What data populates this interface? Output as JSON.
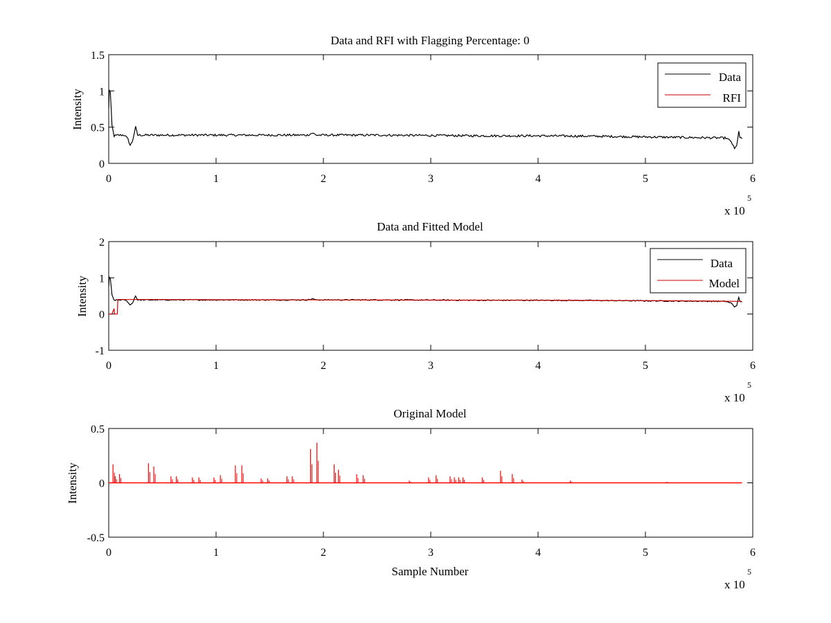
{
  "chart_data": [
    {
      "type": "line",
      "title": "Data and RFI with Flagging Percentage: 0",
      "xlabel": "",
      "ylabel": "Intensity",
      "xlim": [
        0,
        6
      ],
      "ylim": [
        0,
        1.5
      ],
      "x_multiplier": {
        "base": "x 10",
        "exponent": "5"
      },
      "xticks": [
        "0",
        "1",
        "2",
        "3",
        "4",
        "5",
        "6"
      ],
      "yticks": [
        "0",
        "0.5",
        "1",
        "1.5"
      ],
      "xtick_values": [
        0,
        1,
        2,
        3,
        4,
        5,
        6
      ],
      "ytick_values": [
        0,
        0.5,
        1,
        1.5
      ],
      "grid": false,
      "legend_position": "top-right",
      "series": [
        {
          "name": "Data",
          "color": "#000000",
          "points": [
            [
              0,
              0.75
            ],
            [
              0.005,
              1.02
            ],
            [
              0.015,
              0.98
            ],
            [
              0.03,
              0.52
            ],
            [
              0.05,
              0.38
            ],
            [
              0.1,
              0.39
            ],
            [
              0.15,
              0.39
            ],
            [
              0.18,
              0.33
            ],
            [
              0.2,
              0.25
            ],
            [
              0.22,
              0.3
            ],
            [
              0.25,
              0.5
            ],
            [
              0.27,
              0.39
            ],
            [
              0.5,
              0.39
            ],
            [
              1,
              0.39
            ],
            [
              1.5,
              0.39
            ],
            [
              1.85,
              0.39
            ],
            [
              1.9,
              0.42
            ],
            [
              1.93,
              0.39
            ],
            [
              2.5,
              0.39
            ],
            [
              3,
              0.385
            ],
            [
              3.5,
              0.38
            ],
            [
              4,
              0.38
            ],
            [
              4.5,
              0.375
            ],
            [
              5,
              0.365
            ],
            [
              5.5,
              0.355
            ],
            [
              5.75,
              0.35
            ],
            [
              5.8,
              0.3
            ],
            [
              5.83,
              0.2
            ],
            [
              5.85,
              0.24
            ],
            [
              5.87,
              0.45
            ],
            [
              5.88,
              0.35
            ],
            [
              5.9,
              0.34
            ]
          ],
          "noise": 0.015
        },
        {
          "name": "RFI",
          "color": "#cc0000",
          "points": []
        }
      ]
    },
    {
      "type": "line",
      "title": "Data and Fitted Model",
      "xlabel": "",
      "ylabel": "Intensity",
      "xlim": [
        0,
        6
      ],
      "ylim": [
        -1,
        2
      ],
      "x_multiplier": {
        "base": "x 10",
        "exponent": "5"
      },
      "xticks": [
        "0",
        "1",
        "2",
        "3",
        "4",
        "5",
        "6"
      ],
      "yticks": [
        "-1",
        "0",
        "1",
        "2"
      ],
      "xtick_values": [
        0,
        1,
        2,
        3,
        4,
        5,
        6
      ],
      "ytick_values": [
        -1,
        0,
        1,
        2
      ],
      "grid": false,
      "legend_position": "top-right",
      "series": [
        {
          "name": "Data",
          "color": "#000000",
          "points": [
            [
              0,
              0.75
            ],
            [
              0.005,
              1.02
            ],
            [
              0.015,
              0.98
            ],
            [
              0.03,
              0.52
            ],
            [
              0.05,
              0.38
            ],
            [
              0.1,
              0.39
            ],
            [
              0.15,
              0.39
            ],
            [
              0.18,
              0.33
            ],
            [
              0.2,
              0.25
            ],
            [
              0.22,
              0.3
            ],
            [
              0.25,
              0.5
            ],
            [
              0.27,
              0.39
            ],
            [
              0.5,
              0.39
            ],
            [
              1,
              0.39
            ],
            [
              1.5,
              0.39
            ],
            [
              1.85,
              0.39
            ],
            [
              1.9,
              0.42
            ],
            [
              1.93,
              0.39
            ],
            [
              2.5,
              0.39
            ],
            [
              3,
              0.385
            ],
            [
              3.5,
              0.38
            ],
            [
              4,
              0.38
            ],
            [
              4.5,
              0.375
            ],
            [
              5,
              0.365
            ],
            [
              5.5,
              0.355
            ],
            [
              5.75,
              0.35
            ],
            [
              5.8,
              0.3
            ],
            [
              5.83,
              0.2
            ],
            [
              5.85,
              0.24
            ],
            [
              5.87,
              0.45
            ],
            [
              5.88,
              0.35
            ],
            [
              5.9,
              0.34
            ]
          ],
          "noise": 0.015
        },
        {
          "name": "Model",
          "color": "#cc0000",
          "points": [
            [
              0,
              0
            ],
            [
              0.03,
              0
            ],
            [
              0.05,
              0.15
            ],
            [
              0.055,
              0
            ],
            [
              0.08,
              0
            ],
            [
              0.085,
              0.4
            ],
            [
              0.5,
              0.4
            ],
            [
              1,
              0.395
            ],
            [
              2,
              0.39
            ],
            [
              3,
              0.385
            ],
            [
              4,
              0.38
            ],
            [
              5,
              0.37
            ],
            [
              5.5,
              0.36
            ],
            [
              5.9,
              0.35
            ]
          ],
          "noise": 0
        }
      ]
    },
    {
      "type": "line",
      "title": "Original Model",
      "xlabel": "Sample Number",
      "ylabel": "Intensity",
      "xlim": [
        0,
        6
      ],
      "ylim": [
        -0.5,
        0.5
      ],
      "x_multiplier": {
        "base": "x 10",
        "exponent": "5"
      },
      "xticks": [
        "0",
        "1",
        "2",
        "3",
        "4",
        "5",
        "6"
      ],
      "yticks": [
        "-0.5",
        "0",
        "0.5"
      ],
      "xtick_values": [
        0,
        1,
        2,
        3,
        4,
        5,
        6
      ],
      "ytick_values": [
        -0.5,
        0,
        0.5
      ],
      "grid": false,
      "series": [
        {
          "name": "",
          "color": "#ff0000",
          "baseline": 0,
          "xrange": [
            0,
            5.9
          ],
          "spikes": [
            [
              0.04,
              0.17
            ],
            [
              0.06,
              0.06
            ],
            [
              0.1,
              0.08
            ],
            [
              0.37,
              0.18
            ],
            [
              0.42,
              0.15
            ],
            [
              0.58,
              0.06
            ],
            [
              0.63,
              0.06
            ],
            [
              0.78,
              0.05
            ],
            [
              0.84,
              0.05
            ],
            [
              0.98,
              0.05
            ],
            [
              1.04,
              0.07
            ],
            [
              1.18,
              0.16
            ],
            [
              1.24,
              0.16
            ],
            [
              1.42,
              0.04
            ],
            [
              1.48,
              0.04
            ],
            [
              1.66,
              0.06
            ],
            [
              1.71,
              0.06
            ],
            [
              1.88,
              0.31
            ],
            [
              1.94,
              0.37
            ],
            [
              2.1,
              0.17
            ],
            [
              2.14,
              0.12
            ],
            [
              2.31,
              0.08
            ],
            [
              2.37,
              0.07
            ],
            [
              2.8,
              0.02
            ],
            [
              2.98,
              0.05
            ],
            [
              3.05,
              0.07
            ],
            [
              3.18,
              0.06
            ],
            [
              3.22,
              0.05
            ],
            [
              3.26,
              0.05
            ],
            [
              3.3,
              0.05
            ],
            [
              3.48,
              0.05
            ],
            [
              3.65,
              0.11
            ],
            [
              3.76,
              0.08
            ],
            [
              3.85,
              0.03
            ],
            [
              4.3,
              0.02
            ],
            [
              5.2,
              0.01
            ]
          ]
        }
      ]
    }
  ]
}
